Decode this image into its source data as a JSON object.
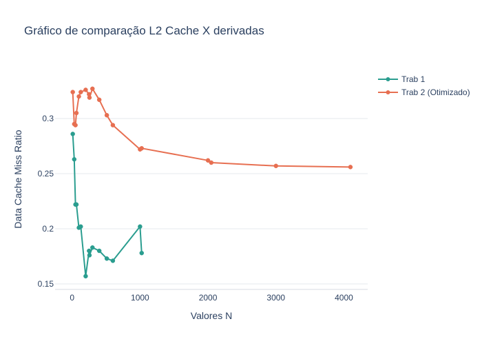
{
  "chart_data": {
    "type": "line",
    "title": "Gráfico de comparação L2 Cache X derivadas",
    "xlabel": "Valores N",
    "ylabel": "Data Cache Miss Ratio",
    "xlim": [
      -250,
      4350
    ],
    "ylim": [
      0.145,
      0.345
    ],
    "xticks": [
      0,
      1000,
      2000,
      3000,
      4000
    ],
    "xtick_labels": [
      "0",
      "1000",
      "2000",
      "3000",
      "4000"
    ],
    "yticks": [
      0.15,
      0.2,
      0.25,
      0.3
    ],
    "ytick_labels": [
      "0.15",
      "0.2",
      "0.25",
      "0.3"
    ],
    "grid": true,
    "legend": "top-right",
    "series": [
      {
        "name": "Trab 1",
        "color": "#2a9d8f",
        "points": [
          [
            10,
            0.286
          ],
          [
            32,
            0.263
          ],
          [
            50,
            0.222
          ],
          [
            64,
            0.222
          ],
          [
            100,
            0.201
          ],
          [
            128,
            0.202
          ],
          [
            200,
            0.157
          ],
          [
            250,
            0.18
          ],
          [
            256,
            0.176
          ],
          [
            300,
            0.183
          ],
          [
            400,
            0.18
          ],
          [
            511,
            0.173
          ],
          [
            600,
            0.171
          ],
          [
            1000,
            0.202
          ],
          [
            1024,
            0.178
          ]
        ]
      },
      {
        "name": "Trab 2 (Otimizado)",
        "color": "#e76f51",
        "points": [
          [
            10,
            0.324
          ],
          [
            32,
            0.295
          ],
          [
            50,
            0.294
          ],
          [
            64,
            0.305
          ],
          [
            100,
            0.32
          ],
          [
            128,
            0.324
          ],
          [
            200,
            0.326
          ],
          [
            250,
            0.322
          ],
          [
            256,
            0.319
          ],
          [
            300,
            0.327
          ],
          [
            400,
            0.317
          ],
          [
            511,
            0.303
          ],
          [
            600,
            0.294
          ],
          [
            1000,
            0.272
          ],
          [
            1024,
            0.273
          ],
          [
            2000,
            0.262
          ],
          [
            2048,
            0.26
          ],
          [
            3000,
            0.257
          ],
          [
            4096,
            0.256
          ]
        ]
      }
    ]
  }
}
